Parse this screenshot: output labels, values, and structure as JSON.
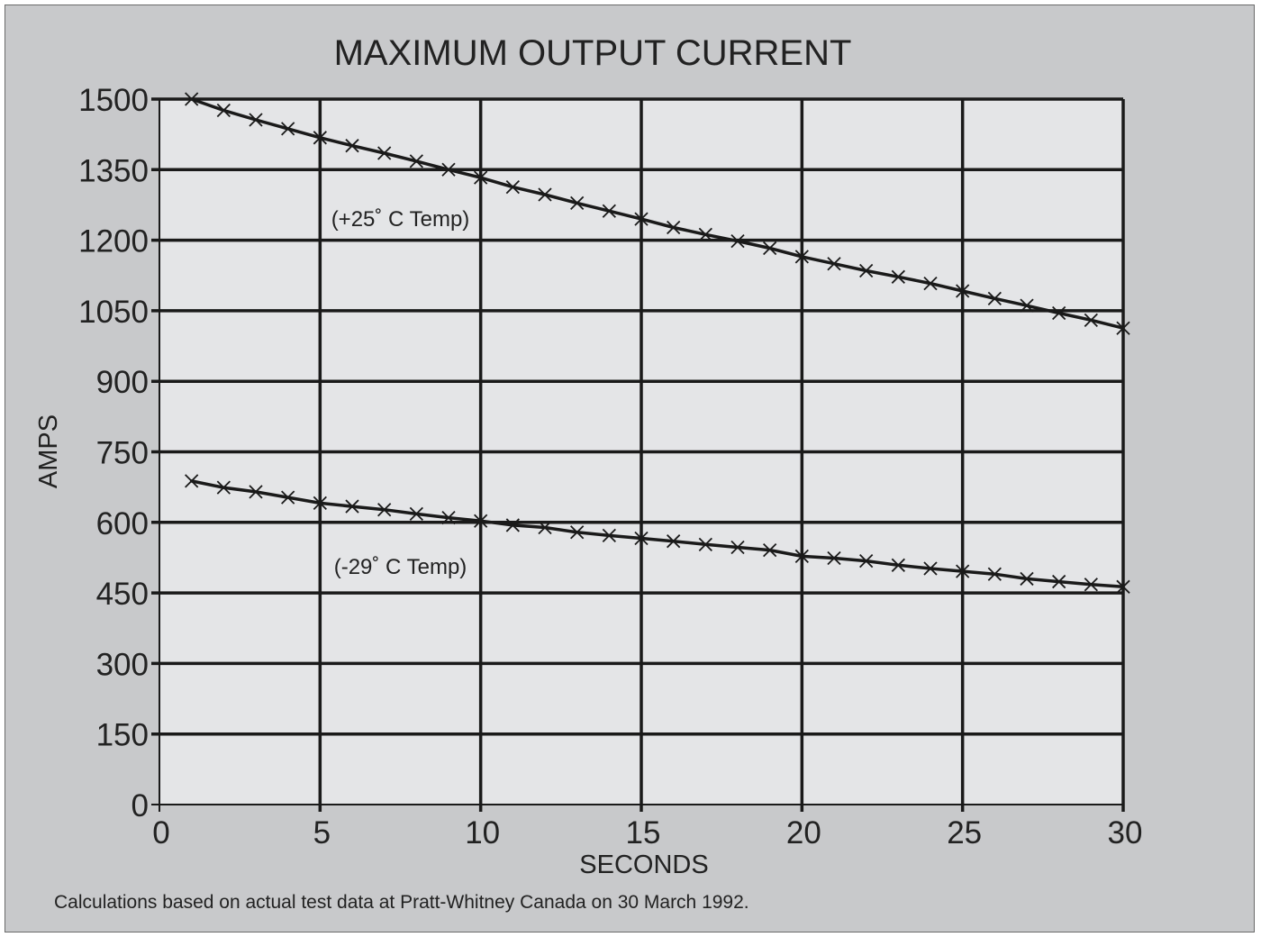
{
  "chart_data": {
    "type": "line",
    "title": "MAXIMUM OUTPUT CURRENT",
    "xlabel": "SECONDS",
    "ylabel": "AMPS",
    "xlim": [
      0,
      30
    ],
    "ylim": [
      0,
      1500
    ],
    "x_ticks": [
      0,
      5,
      10,
      15,
      20,
      25,
      30
    ],
    "y_ticks": [
      0,
      150,
      300,
      450,
      600,
      750,
      900,
      1050,
      1200,
      1350,
      1500
    ],
    "grid": true,
    "marker": "x",
    "x": [
      1,
      2,
      3,
      4,
      5,
      6,
      7,
      8,
      9,
      10,
      11,
      12,
      13,
      14,
      15,
      16,
      17,
      18,
      19,
      20,
      21,
      22,
      23,
      24,
      25,
      26,
      27,
      28,
      29,
      30
    ],
    "series": [
      {
        "values": [
          1500,
          1476,
          1456,
          1437,
          1418,
          1401,
          1385,
          1368,
          1350,
          1333,
          1313,
          1297,
          1279,
          1262,
          1245,
          1227,
          1212,
          1198,
          1183,
          1165,
          1150,
          1135,
          1122,
          1108,
          1092,
          1076,
          1061,
          1045,
          1030,
          1013
        ],
        "color": "#1a1a1a"
      },
      {
        "values": [
          688,
          674,
          665,
          653,
          641,
          634,
          627,
          618,
          610,
          603,
          594,
          589,
          579,
          572,
          566,
          560,
          553,
          547,
          541,
          528,
          524,
          518,
          509,
          502,
          496,
          490,
          480,
          474,
          468,
          463
        ],
        "color": "#1a1a1a"
      }
    ],
    "annotations": [
      {
        "text": "(+25˚ C Temp)",
        "x": 7.5,
        "y": 1230
      },
      {
        "text": "(-29˚ C Temp)",
        "x": 7.5,
        "y": 490
      }
    ],
    "footnote": "Calculations based on actual test data at Pratt-Whitney Canada on 30 March 1992."
  },
  "colors": {
    "frame_background": "#c8c9cb",
    "plot_background": "#e4e5e7",
    "grid_line": "#1a1a1a",
    "text": "#222222"
  }
}
